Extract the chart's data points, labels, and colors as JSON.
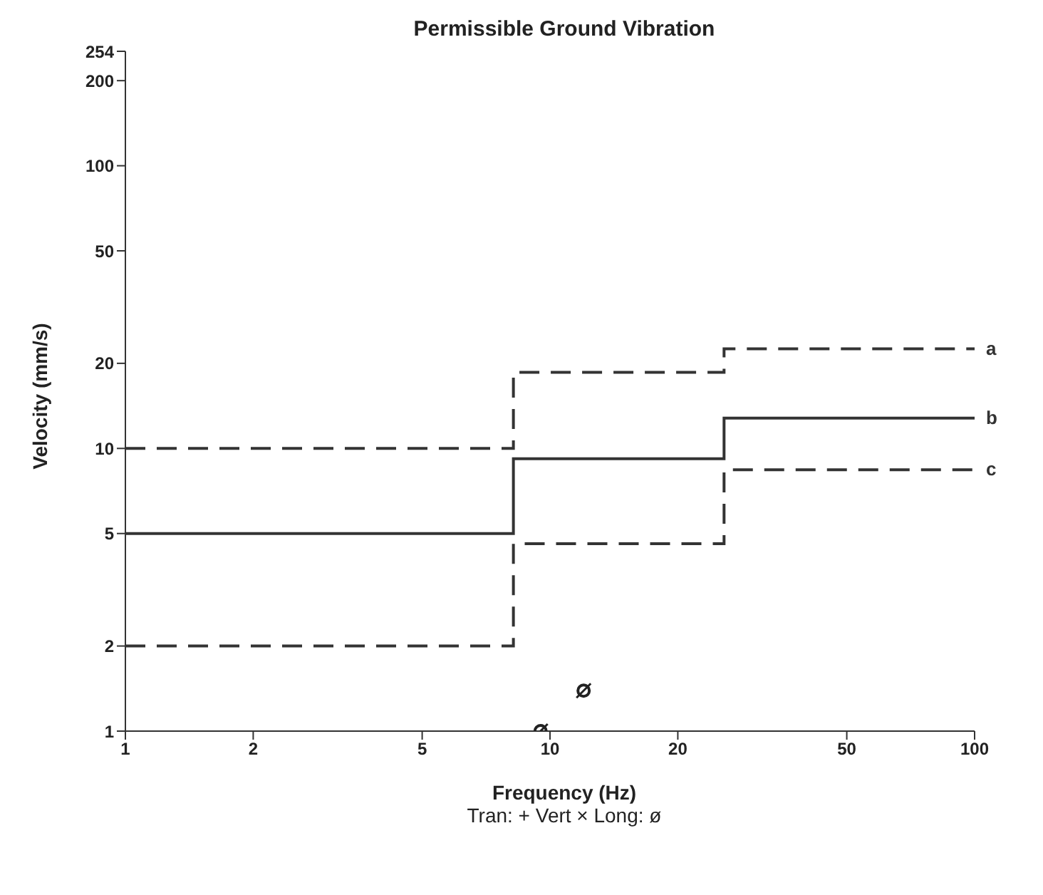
{
  "chart_data": {
    "type": "step",
    "title": "Permissible Ground Vibration",
    "xlabel": "Frequency (Hz)",
    "ylabel": "Velocity (mm/s)",
    "annotations": [
      "Tran: + Vert × Long: ø"
    ],
    "log": "xy",
    "xlim": [
      1,
      100
    ],
    "ylim": [
      1,
      254
    ],
    "xticks": [
      1,
      2,
      5,
      10,
      20,
      50,
      100
    ],
    "yticks": [
      1,
      2,
      5,
      10,
      20,
      50,
      100,
      200,
      254
    ],
    "series": [
      {
        "name": "a",
        "color": "#333333",
        "line_style": "dashed",
        "marker": "none",
        "x": [
          1,
          8.2,
          25.7,
          100
        ],
        "values": [
          10,
          18.6,
          22.5,
          22.5
        ]
      },
      {
        "name": "b",
        "color": "#333333",
        "line_style": "solid",
        "marker": "none",
        "x": [
          1,
          8.2,
          25.7,
          100
        ],
        "values": [
          5,
          9.2,
          12.8,
          12.8
        ]
      },
      {
        "name": "c",
        "color": "#333333",
        "line_style": "dashed",
        "marker": "none",
        "x": [
          1,
          8.2,
          25.7,
          100
        ],
        "values": [
          2,
          4.6,
          8.4,
          8.4
        ]
      },
      {
        "type": "scatter",
        "color": "#222222",
        "marker": "circle",
        "x": [
          9.5,
          12
        ],
        "values": [
          1,
          1.39
        ]
      }
    ]
  }
}
